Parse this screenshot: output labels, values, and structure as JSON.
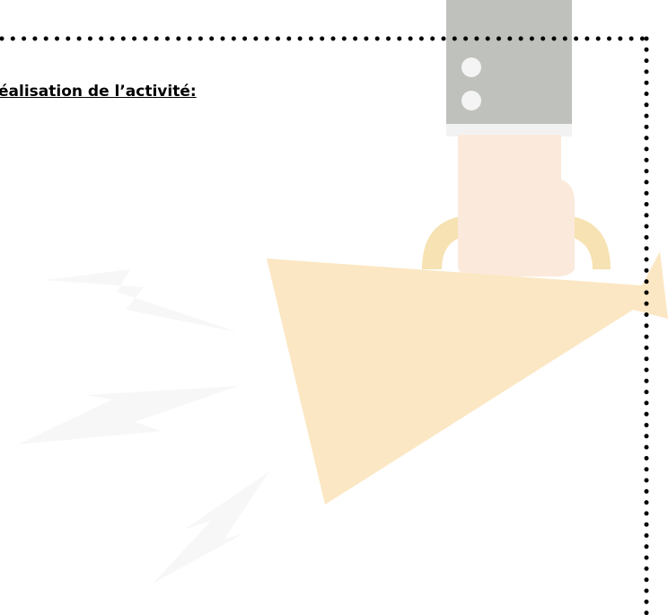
{
  "heading": "éalisation de l’activité:"
}
